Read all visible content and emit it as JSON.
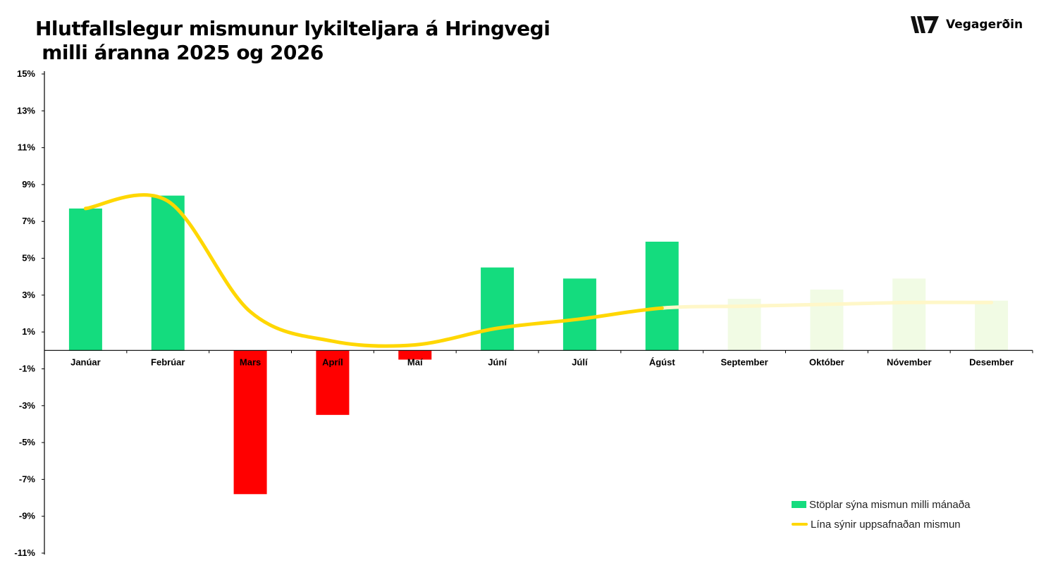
{
  "title_lines": [
    "Hlutfallslegur mismunur lykilteljara á Hringvegi",
    " milli áranna 2025 og 2026"
  ],
  "brand": {
    "name": "Vegagerðin",
    "logo_icon": "vegagerdin-stripes-icon"
  },
  "colors": {
    "positive": "#14DC7E",
    "negative": "#FF0000",
    "forecast": "#F1FBE4",
    "line": "#FFD700",
    "line_forecast": "#FFF7C8",
    "axis": "#000000"
  },
  "legend": {
    "bars": "Stöplar sýna mismun milli mánaða",
    "line": "Lína sýnir uppsafnaðan mismun"
  },
  "chart_data": {
    "type": "bar",
    "title": "Hlutfallslegur mismunur lykilteljara á Hringvegi milli áranna 2025 og 2026",
    "categories": [
      "Janúar",
      "Febrúar",
      "Mars",
      "Apríl",
      "Maí",
      "Júní",
      "Júlí",
      "Ágúst",
      "September",
      "Október",
      "Nóvember",
      "Desember"
    ],
    "series": [
      {
        "name": "Stöplar sýna mismun milli mánaða",
        "type": "bar",
        "values": [
          7.7,
          8.4,
          -7.8,
          -3.5,
          -0.5,
          4.5,
          3.9,
          5.9,
          2.8,
          3.3,
          3.9,
          2.7
        ],
        "forecast_from_index": 8
      },
      {
        "name": "Lína sýnir uppsafnaðan mismun",
        "type": "line",
        "values": [
          7.7,
          8.1,
          2.1,
          0.5,
          0.3,
          1.2,
          1.7,
          2.3,
          2.4,
          2.5,
          2.6,
          2.6
        ],
        "forecast_from_index": 7
      }
    ],
    "ylim": [
      -11,
      15
    ],
    "yticks": [
      15,
      13,
      11,
      9,
      7,
      5,
      3,
      1,
      -1,
      -3,
      -5,
      -7,
      -9,
      -11
    ],
    "ytick_format": "%",
    "grid": false,
    "legend_position": "bottom-right"
  }
}
